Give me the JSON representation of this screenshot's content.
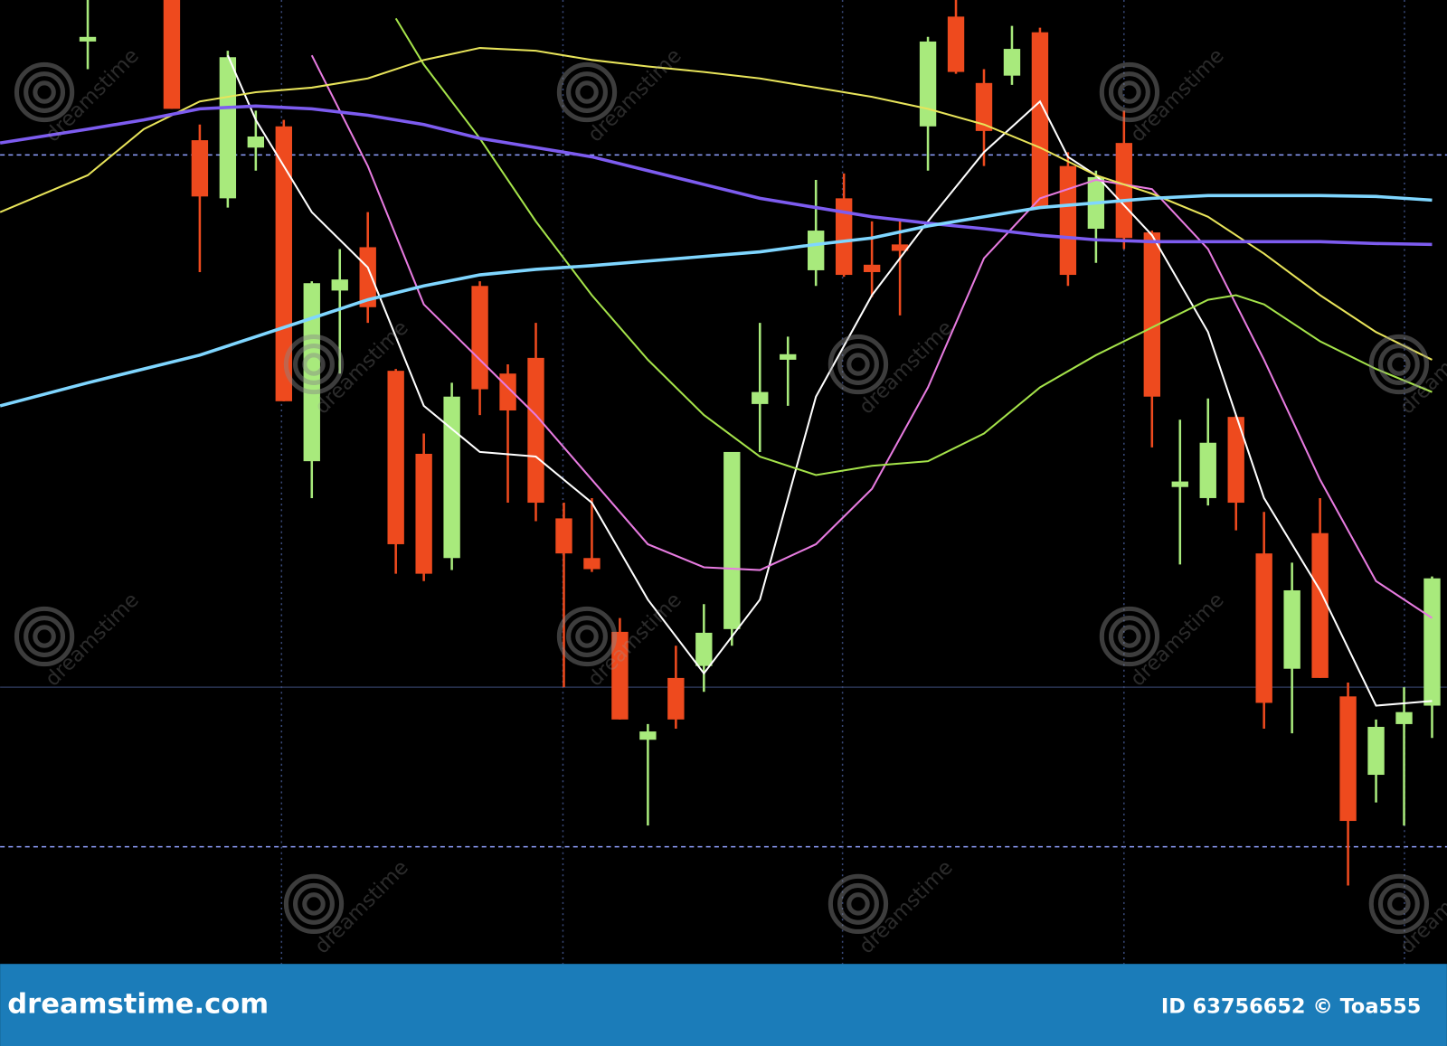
{
  "chart_data": {
    "type": "candlestick",
    "xlim": [
      -3.13,
      48.53
    ],
    "ylim": [
      0,
      1045
    ],
    "up_color": "#a8ea7c",
    "down_color": "#ee4a1e",
    "x": [
      0,
      3,
      4,
      5,
      6,
      7,
      8,
      9,
      10,
      11,
      12,
      13,
      14,
      15,
      16,
      17,
      18,
      19,
      20,
      21,
      22,
      23,
      24,
      25,
      26,
      27,
      28,
      29,
      30,
      31,
      32,
      33,
      34,
      35,
      36,
      37,
      38,
      39,
      40,
      41,
      42,
      43,
      44,
      45,
      46,
      47,
      48
    ],
    "open": [
      1000,
      1045,
      893,
      830,
      885,
      908,
      545,
      730,
      777,
      643,
      553,
      440,
      735,
      640,
      657,
      483,
      440,
      360,
      243,
      310,
      323,
      363,
      607,
      655,
      752,
      830,
      758,
      780,
      908,
      1027,
      955,
      963,
      1010,
      865,
      797,
      890,
      793,
      517,
      505,
      593,
      445,
      320,
      467,
      290,
      205,
      260,
      280
    ],
    "high": [
      1045,
      1045,
      910,
      990,
      925,
      915,
      740,
      775,
      815,
      645,
      575,
      630,
      740,
      650,
      695,
      500,
      505,
      375,
      260,
      345,
      390,
      555,
      695,
      680,
      850,
      857,
      805,
      805,
      1005,
      1045,
      970,
      1017,
      1015,
      880,
      860,
      925,
      795,
      590,
      613,
      595,
      490,
      435,
      505,
      305,
      265,
      300,
      420
    ],
    "low": [
      970,
      927,
      750,
      820,
      860,
      610,
      505,
      640,
      695,
      423,
      415,
      427,
      595,
      500,
      480,
      300,
      425,
      265,
      150,
      255,
      295,
      345,
      555,
      605,
      735,
      745,
      723,
      703,
      860,
      965,
      865,
      953,
      820,
      735,
      760,
      775,
      560,
      433,
      497,
      470,
      255,
      250,
      310,
      85,
      175,
      150,
      245
    ],
    "close": [
      1005,
      927,
      832,
      983,
      897,
      610,
      738,
      742,
      712,
      455,
      423,
      615,
      623,
      600,
      500,
      445,
      428,
      265,
      252,
      265,
      359,
      555,
      620,
      661,
      795,
      747,
      750,
      773,
      1000,
      967,
      903,
      992,
      820,
      747,
      853,
      787,
      615,
      523,
      565,
      500,
      283,
      405,
      310,
      155,
      257,
      273,
      418
    ],
    "series": [
      {
        "color": "#ffffff",
        "x": [
          5,
          6,
          8,
          10,
          12,
          14,
          16,
          18,
          20,
          22,
          24,
          26,
          28,
          30,
          32,
          34,
          35,
          36,
          38,
          40,
          42,
          44,
          46,
          48
        ],
        "values": [
          985,
          915,
          815,
          755,
          605,
          555,
          550,
          500,
          395,
          315,
          395,
          615,
          725,
          805,
          880,
          935,
          875,
          855,
          790,
          685,
          505,
          405,
          280,
          285
        ]
      },
      {
        "color": "#e77be0",
        "x": [
          8,
          10,
          12,
          14,
          16,
          18,
          20,
          22,
          24,
          26,
          28,
          30,
          32,
          34,
          36,
          38,
          40,
          42,
          44,
          46,
          48
        ],
        "values": [
          985,
          865,
          715,
          655,
          595,
          525,
          455,
          430,
          427,
          455,
          515,
          625,
          765,
          830,
          850,
          840,
          775,
          655,
          525,
          415,
          375
        ]
      },
      {
        "color": "#a5e34a",
        "x": [
          11,
          12,
          14,
          16,
          18,
          20,
          22,
          24,
          26,
          28,
          30,
          32,
          34,
          36,
          38,
          40,
          41,
          42,
          44,
          46,
          48
        ],
        "values": [
          1025,
          975,
          895,
          805,
          725,
          655,
          595,
          550,
          530,
          540,
          545,
          575,
          625,
          660,
          690,
          720,
          725,
          715,
          675,
          645,
          620
        ]
      },
      {
        "color": "#e8e45a",
        "x": [
          -3.13,
          0,
          2,
          4,
          6,
          8,
          10,
          12,
          14,
          16,
          18,
          20,
          22,
          24,
          26,
          28,
          30,
          32,
          34,
          36,
          38,
          40,
          42,
          44,
          46,
          48
        ],
        "values": [
          815,
          855,
          905,
          935,
          945,
          950,
          960,
          980,
          993,
          990,
          980,
          973,
          967,
          960,
          950,
          940,
          927,
          910,
          885,
          855,
          835,
          810,
          770,
          725,
          685,
          655
        ]
      },
      {
        "color": "#7d5cf0",
        "x": [
          -3.13,
          0,
          2,
          4,
          6,
          8,
          10,
          12,
          14,
          16,
          18,
          20,
          22,
          24,
          26,
          28,
          30,
          32,
          34,
          36,
          38,
          40,
          42,
          44,
          46,
          48
        ],
        "values": [
          890,
          905,
          915,
          927,
          930,
          927,
          920,
          910,
          895,
          885,
          875,
          860,
          845,
          830,
          820,
          810,
          803,
          797,
          790,
          785,
          783,
          783,
          783,
          783,
          781,
          780
        ]
      },
      {
        "color": "#7fd6ff",
        "x": [
          -3.13,
          0,
          2,
          4,
          6,
          8,
          10,
          12,
          14,
          16,
          18,
          20,
          22,
          24,
          26,
          28,
          30,
          32,
          34,
          36,
          38,
          40,
          42,
          44,
          46,
          48
        ],
        "values": [
          605,
          630,
          645,
          660,
          680,
          700,
          720,
          735,
          747,
          753,
          757,
          762,
          767,
          772,
          780,
          787,
          800,
          810,
          820,
          825,
          830,
          833,
          833,
          833,
          832,
          828
        ]
      }
    ]
  },
  "watermark": "dreamstime",
  "footer": {
    "brand": "dreamstime.com",
    "credit": "ID 63756652 © Toa555"
  }
}
